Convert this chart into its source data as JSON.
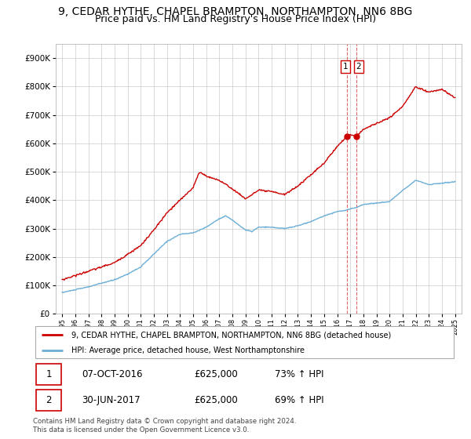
{
  "title": "9, CEDAR HYTHE, CHAPEL BRAMPTON, NORTHAMPTON, NN6 8BG",
  "subtitle": "Price paid vs. HM Land Registry's House Price Index (HPI)",
  "legend_line1": "9, CEDAR HYTHE, CHAPEL BRAMPTON, NORTHAMPTON, NN6 8BG (detached house)",
  "legend_line2": "HPI: Average price, detached house, West Northamptonshire",
  "footer": "Contains HM Land Registry data © Crown copyright and database right 2024.\nThis data is licensed under the Open Government Licence v3.0.",
  "table": [
    {
      "num": "1",
      "date": "07-OCT-2016",
      "price": "£625,000",
      "change": "73% ↑ HPI"
    },
    {
      "num": "2",
      "date": "30-JUN-2017",
      "price": "£625,000",
      "change": "69% ↑ HPI"
    }
  ],
  "sale1_x": 2016.77,
  "sale1_y": 625000,
  "sale2_x": 2017.49,
  "sale2_y": 625000,
  "vline1_x": 2016.77,
  "vline2_x": 2017.49,
  "ylim": [
    0,
    950000
  ],
  "xlim": [
    1994.5,
    2025.5
  ],
  "hpi_color": "#6baed6",
  "price_color": "#cc0000",
  "background_color": "#ffffff",
  "grid_color": "#cccccc",
  "title_fontsize": 10,
  "subtitle_fontsize": 9,
  "hpi_key_points_x": [
    1995.0,
    1996.0,
    1997.0,
    1998.0,
    1999.0,
    2000.0,
    2001.0,
    2002.0,
    2003.0,
    2004.0,
    2005.0,
    2006.0,
    2007.0,
    2007.5,
    2008.0,
    2009.0,
    2009.5,
    2010.0,
    2011.0,
    2012.0,
    2013.0,
    2014.0,
    2015.0,
    2016.0,
    2016.77,
    2017.0,
    2017.5,
    2018.0,
    2019.0,
    2020.0,
    2021.0,
    2022.0,
    2023.0,
    2024.0,
    2025.0
  ],
  "hpi_key_points_y": [
    75000,
    85000,
    95000,
    108000,
    120000,
    140000,
    165000,
    210000,
    255000,
    280000,
    285000,
    305000,
    335000,
    345000,
    330000,
    295000,
    290000,
    305000,
    305000,
    300000,
    310000,
    325000,
    345000,
    360000,
    365000,
    370000,
    375000,
    385000,
    390000,
    395000,
    435000,
    470000,
    455000,
    460000,
    465000
  ],
  "prop_key_points_x": [
    1995.0,
    1996.0,
    1997.0,
    1998.0,
    1999.0,
    2000.0,
    2001.0,
    2002.0,
    2003.0,
    2004.0,
    2005.0,
    2005.5,
    2006.0,
    2007.0,
    2008.0,
    2009.0,
    2010.0,
    2011.0,
    2012.0,
    2013.0,
    2014.0,
    2015.0,
    2016.0,
    2016.77,
    2017.0,
    2017.49,
    2018.0,
    2019.0,
    2020.0,
    2021.0,
    2022.0,
    2023.0,
    2024.0,
    2025.0
  ],
  "prop_key_points_y": [
    120000,
    135000,
    150000,
    165000,
    180000,
    210000,
    240000,
    295000,
    355000,
    400000,
    445000,
    500000,
    485000,
    470000,
    440000,
    405000,
    435000,
    430000,
    420000,
    450000,
    490000,
    530000,
    590000,
    625000,
    630000,
    625000,
    650000,
    670000,
    690000,
    730000,
    800000,
    780000,
    790000,
    760000
  ]
}
